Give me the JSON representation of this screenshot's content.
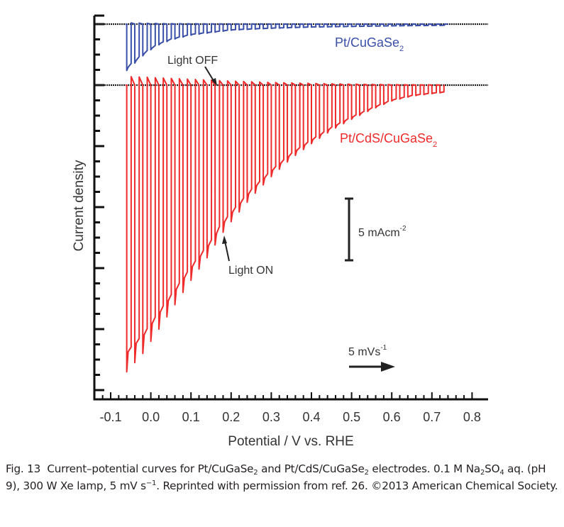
{
  "chart_data": {
    "type": "line",
    "title": "",
    "xlabel": "Potential / V vs. RHE",
    "ylabel": "Current density",
    "xlim": [
      -0.13,
      0.81
    ],
    "x_ticks": [
      "-0.1",
      "0.0",
      "0.1",
      "0.2",
      "0.3",
      "0.4",
      "0.5",
      "0.6",
      "0.7",
      "0.8"
    ],
    "x_tick_values": [
      -0.1,
      0.0,
      0.1,
      0.2,
      0.3,
      0.4,
      0.5,
      0.6,
      0.7,
      0.8
    ],
    "x_minor_step": 0.02,
    "y_units": "mA cm-2 (offset curves, 5 mA cm-2 per major tick)",
    "y_major_step": 5,
    "y_minor_per_major": 4,
    "grid": false,
    "chop_period_V": 0.02,
    "series": [
      {
        "name": "Pt/CuGaSe2",
        "color": "#3a4fa8",
        "baseline_offset": 5,
        "x_start": -0.06,
        "x_end": 0.74,
        "photocurrent_envelope": {
          "x": [
            -0.06,
            -0.04,
            -0.02,
            0.0,
            0.02,
            0.05,
            0.1,
            0.15,
            0.2,
            0.3,
            0.4,
            0.5,
            0.6,
            0.74
          ],
          "y": [
            -3.8,
            -3.2,
            -2.6,
            -2.1,
            -1.7,
            -1.3,
            -0.9,
            -0.7,
            -0.5,
            -0.35,
            -0.25,
            -0.2,
            -0.15,
            -0.1
          ]
        }
      },
      {
        "name": "Pt/CdS/CuGaSe2",
        "color": "#ee2a2a",
        "baseline_offset": 0,
        "x_start": -0.06,
        "x_end": 0.73,
        "photocurrent_envelope": {
          "x": [
            -0.06,
            -0.02,
            0.0,
            0.05,
            0.1,
            0.15,
            0.17,
            0.2,
            0.25,
            0.3,
            0.35,
            0.4,
            0.45,
            0.5,
            0.55,
            0.6,
            0.65,
            0.7,
            0.73
          ],
          "y": [
            -23.5,
            -22.0,
            -21.0,
            -18.5,
            -16.0,
            -13.7,
            -12.5,
            -11.2,
            -9.2,
            -7.5,
            -6.0,
            -4.8,
            -3.7,
            -2.8,
            -2.0,
            -1.3,
            -0.9,
            -0.7,
            -0.6
          ]
        }
      }
    ],
    "annotations": {
      "series_label_blue": "Pt/CuGaSe",
      "series_label_red": "Pt/CdS/CuGaSe",
      "subscript_2": "2",
      "light_off": "Light OFF",
      "light_on": "Light ON",
      "scale_bar": "5 mAcm",
      "scale_bar_exp": "-2",
      "scan_rate": "5 mVs",
      "scan_rate_exp": "-1"
    }
  },
  "caption": {
    "label": "Fig. 13",
    "text_1": "Current–potential curves for Pt/CuGaSe",
    "text_2": " and Pt/CdS/CuGaSe",
    "text_3": " electrodes. 0.1 M Na",
    "text_4": "SO",
    "text_5": " aq. (pH 9), 300 W Xe lamp, 5 mV s",
    "text_6": ". Reprinted with permission from ref. 26. ©2013 American Chemical Society.",
    "sub_2": "2",
    "sub_4": "4",
    "sup_minus1": "−1"
  }
}
